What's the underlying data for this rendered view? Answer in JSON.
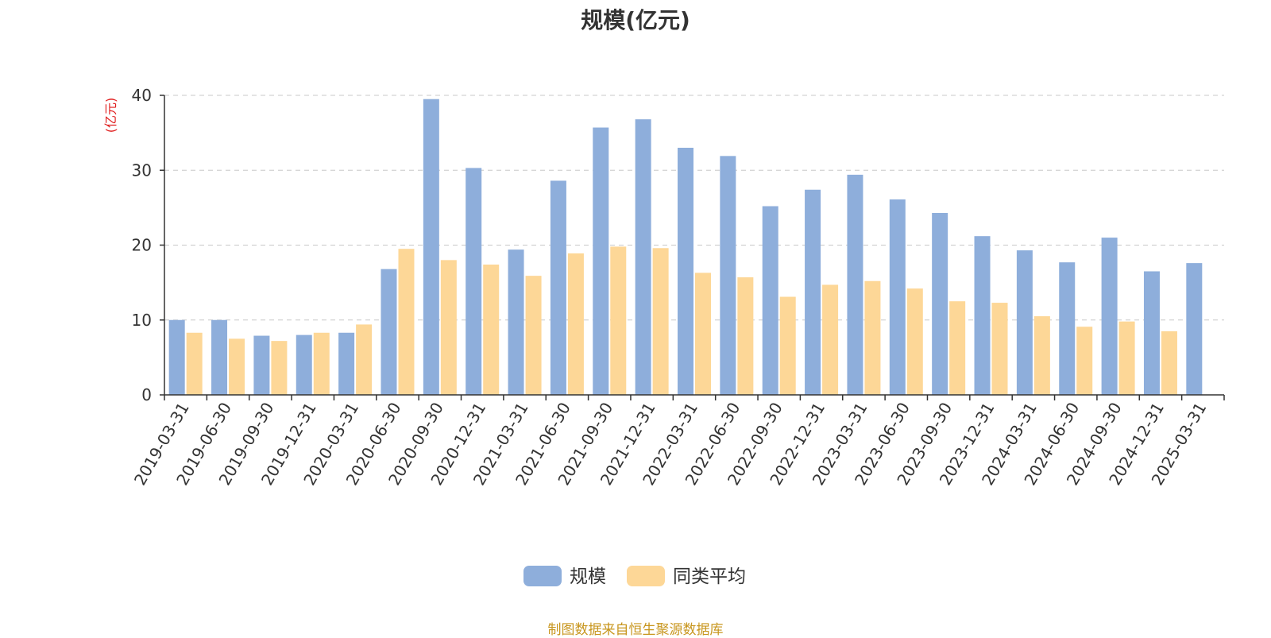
{
  "chart_data": {
    "type": "bar",
    "title": "规模(亿元)",
    "ylabel": "(亿元)",
    "ylim": [
      0,
      40
    ],
    "yticks": [
      0,
      10,
      20,
      30,
      40
    ],
    "grid": true,
    "legend_position": "bottom",
    "categories": [
      "2019-03-31",
      "2019-06-30",
      "2019-09-30",
      "2019-12-31",
      "2020-03-31",
      "2020-06-30",
      "2020-09-30",
      "2020-12-31",
      "2021-03-31",
      "2021-06-30",
      "2021-09-30",
      "2021-12-31",
      "2022-03-31",
      "2022-06-30",
      "2022-09-30",
      "2022-12-31",
      "2023-03-31",
      "2023-06-30",
      "2023-09-30",
      "2023-12-31",
      "2024-03-31",
      "2024-06-30",
      "2024-09-30",
      "2024-12-31",
      "2025-03-31"
    ],
    "series": [
      {
        "name": "规模",
        "color": "#8eaedb",
        "values": [
          10.0,
          10.0,
          7.9,
          8.0,
          8.3,
          16.8,
          39.5,
          30.3,
          19.4,
          28.6,
          35.7,
          36.8,
          33.0,
          31.9,
          25.2,
          27.4,
          29.4,
          26.1,
          24.3,
          21.2,
          19.3,
          17.7,
          21.0,
          16.5,
          17.6
        ]
      },
      {
        "name": "同类平均",
        "color": "#fdd797",
        "values": [
          8.3,
          7.5,
          7.2,
          8.3,
          9.4,
          19.5,
          18.0,
          17.4,
          15.9,
          18.9,
          19.8,
          19.6,
          16.3,
          15.7,
          13.1,
          14.7,
          15.2,
          14.2,
          12.5,
          12.3,
          10.5,
          9.1,
          9.8,
          8.5,
          null
        ]
      }
    ]
  },
  "footer": {
    "source": "制图数据来自恒生聚源数据库"
  }
}
